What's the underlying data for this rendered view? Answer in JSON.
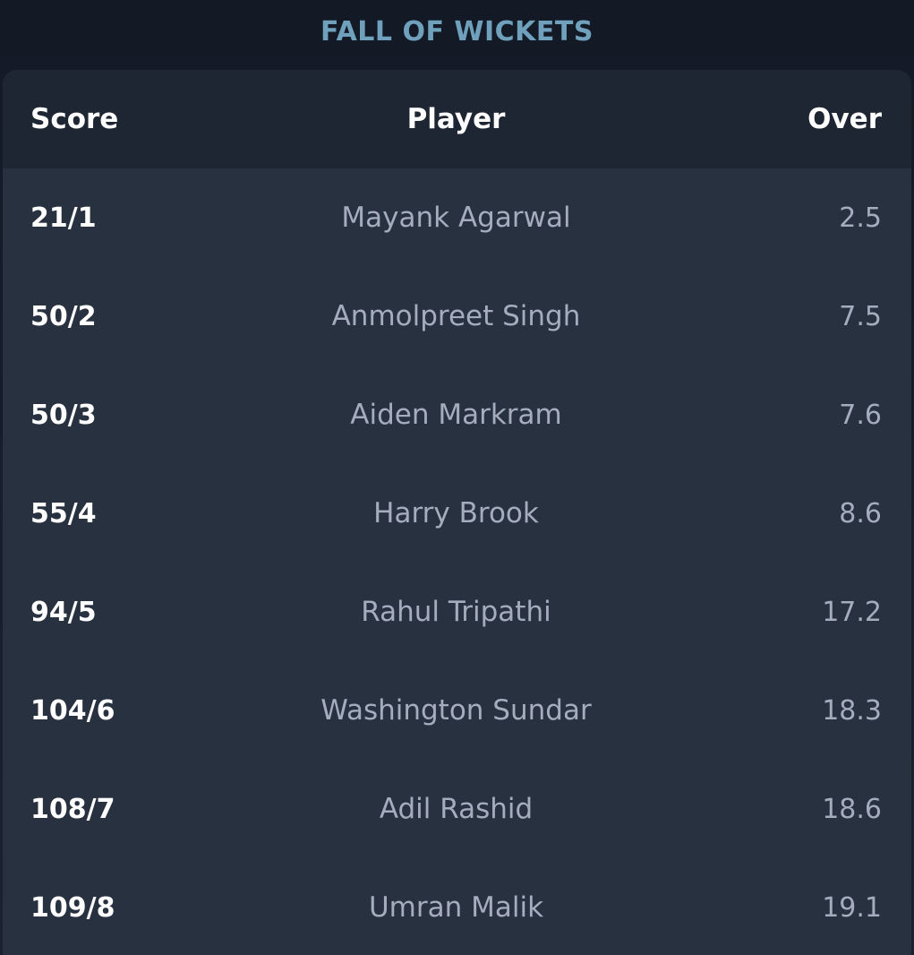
{
  "section": {
    "title": "FALL OF WICKETS"
  },
  "table": {
    "columns": {
      "score": "Score",
      "player": "Player",
      "over": "Over"
    },
    "rows": [
      {
        "score": "21/1",
        "player": "Mayank Agarwal",
        "over": "2.5"
      },
      {
        "score": "50/2",
        "player": "Anmolpreet Singh",
        "over": "7.5"
      },
      {
        "score": "50/3",
        "player": "Aiden Markram",
        "over": "7.6"
      },
      {
        "score": "55/4",
        "player": "Harry Brook",
        "over": "8.6"
      },
      {
        "score": "94/5",
        "player": "Rahul Tripathi",
        "over": "17.2"
      },
      {
        "score": "104/6",
        "player": "Washington Sundar",
        "over": "18.3"
      },
      {
        "score": "108/7",
        "player": "Adil Rashid",
        "over": "18.6"
      },
      {
        "score": "109/8",
        "player": "Umran Malik",
        "over": "19.1"
      }
    ]
  },
  "colors": {
    "title": "#6fa1bd",
    "header_bg": "#1f2633",
    "row_bg": "#283140",
    "page_bg": "#151b27",
    "muted_text": "#a4acbd"
  }
}
